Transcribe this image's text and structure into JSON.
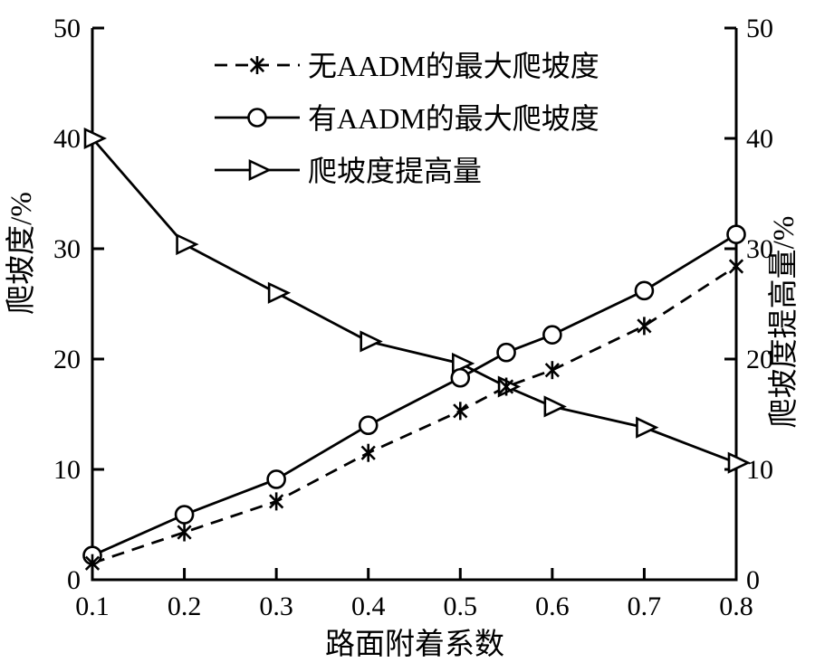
{
  "figure": {
    "background": "#ffffff",
    "ink_color": "#000000"
  },
  "chart_data": {
    "type": "line",
    "title": "",
    "xlabel": "路面附着系数",
    "ylabel_left": "爬坡度/%",
    "ylabel_right": "爬坡度提高量/%",
    "xlim": [
      0.1,
      0.8
    ],
    "ylim_left": [
      0,
      50
    ],
    "ylim_right": [
      0,
      50
    ],
    "x_tick_labels": [
      "0.1",
      "0.2",
      "0.3",
      "0.4",
      "0.5",
      "0.6",
      "0.7",
      "0.8"
    ],
    "y_tick_labels_left": [
      "0",
      "10",
      "20",
      "30",
      "40",
      "50"
    ],
    "y_tick_labels_right": [
      "0",
      "10",
      "20",
      "30",
      "40",
      "50"
    ],
    "grid": false,
    "legend": {
      "position": "inside-top",
      "border": false
    },
    "x": [
      0.1,
      0.2,
      0.3,
      0.4,
      0.5,
      0.55,
      0.6,
      0.7,
      0.8
    ],
    "series": [
      {
        "name": "无AADM的最大爬坡度",
        "axis": "left",
        "marker": "asterisk",
        "linestyle": "dashed",
        "color": "#000000",
        "values": [
          1.5,
          4.3,
          7.1,
          11.5,
          15.3,
          17.5,
          19.0,
          23.0,
          28.4
        ]
      },
      {
        "name": "有AADM的最大爬坡度",
        "axis": "left",
        "marker": "circle",
        "linestyle": "solid",
        "color": "#000000",
        "values": [
          2.2,
          5.9,
          9.1,
          14.0,
          18.3,
          20.6,
          22.2,
          26.2,
          31.3
        ]
      },
      {
        "name": "爬坡度提高量",
        "axis": "right",
        "marker": "triangle-right",
        "linestyle": "solid",
        "color": "#000000",
        "values": [
          40.0,
          30.4,
          26.0,
          21.6,
          19.6,
          17.5,
          15.7,
          13.8,
          10.6
        ]
      }
    ]
  }
}
